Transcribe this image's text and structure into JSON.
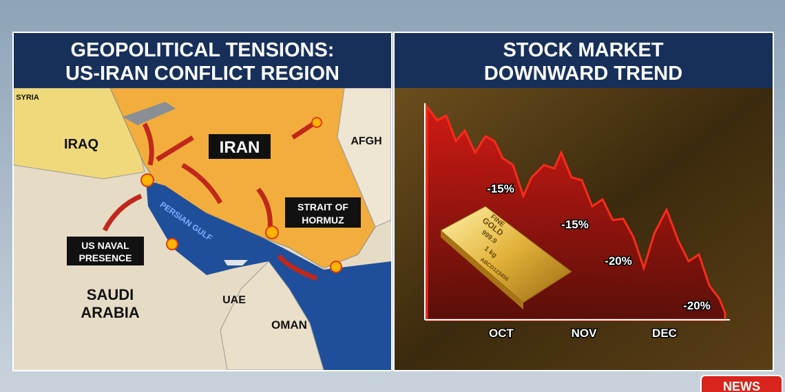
{
  "left_panel": {
    "title": [
      "GEOPOLITICAL TENSIONS:",
      "US-IRAN CONFLICT REGION"
    ],
    "map_labels": {
      "syria": "SYRIA",
      "iraq": "IRAQ",
      "iran": "IRAN",
      "afghanistan": "AFGH",
      "strait": [
        "STRAIT OF",
        "HORMUZ"
      ],
      "naval": [
        "US NAVAL",
        "PRESENCE"
      ],
      "gulf": "PERSIAN GULF",
      "saudi": [
        "SAUDI",
        "ARABIA"
      ],
      "uae": "UAE",
      "oman": "OMAN"
    }
  },
  "right_panel": {
    "title": [
      "STOCK MARKET",
      "DOWNWARD TREND"
    ],
    "annotations": [
      "-15%",
      "-15%",
      "-20%",
      "-20%"
    ],
    "months": [
      "OCT",
      "NOV",
      "DEC"
    ],
    "gold_bar": [
      "FINE",
      "GOLD",
      "999.9",
      "1 kg",
      "ABCD123456"
    ]
  },
  "badge": "NEWS"
}
